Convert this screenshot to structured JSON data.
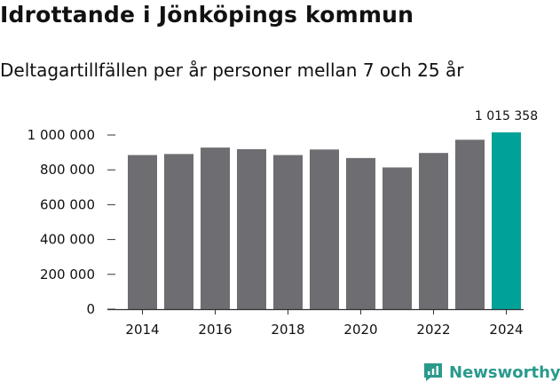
{
  "header": {
    "title": "Idrottande i Jönköpings kommun",
    "subtitle": "Deltagartillfällen per år personer mellan 7 och 25 år"
  },
  "colors": {
    "bar": "#6e6d72",
    "highlight": "#00a298",
    "axis": "#333333",
    "grid": "#d9d9d9",
    "brand": "#2a9a8c"
  },
  "chart_data": {
    "type": "bar",
    "title": "Idrottande i Jönköpings kommun",
    "subtitle": "Deltagartillfällen per år personer mellan 7 och 25 år",
    "xlabel": "",
    "ylabel": "",
    "categories": [
      "2014",
      "2015",
      "2016",
      "2017",
      "2018",
      "2019",
      "2020",
      "2021",
      "2022",
      "2023",
      "2024"
    ],
    "values": [
      885000,
      891000,
      928000,
      919000,
      885000,
      917000,
      868000,
      814000,
      897000,
      973000,
      1015358
    ],
    "highlight_index": 10,
    "highlight_label": "1 015 358",
    "ylim": [
      0,
      1015358
    ],
    "yticks": [
      0,
      200000,
      400000,
      600000,
      800000,
      1000000
    ],
    "ytick_labels": [
      "0",
      "200 000",
      "400 000",
      "600 000",
      "800 000",
      "1 000 000"
    ],
    "xtick_labels": [
      "2014",
      "2016",
      "2018",
      "2020",
      "2022",
      "2024"
    ],
    "grid": false
  },
  "footer": {
    "brand_name": "Newsworthy",
    "brand_icon": "newsworthy-logo-icon"
  }
}
